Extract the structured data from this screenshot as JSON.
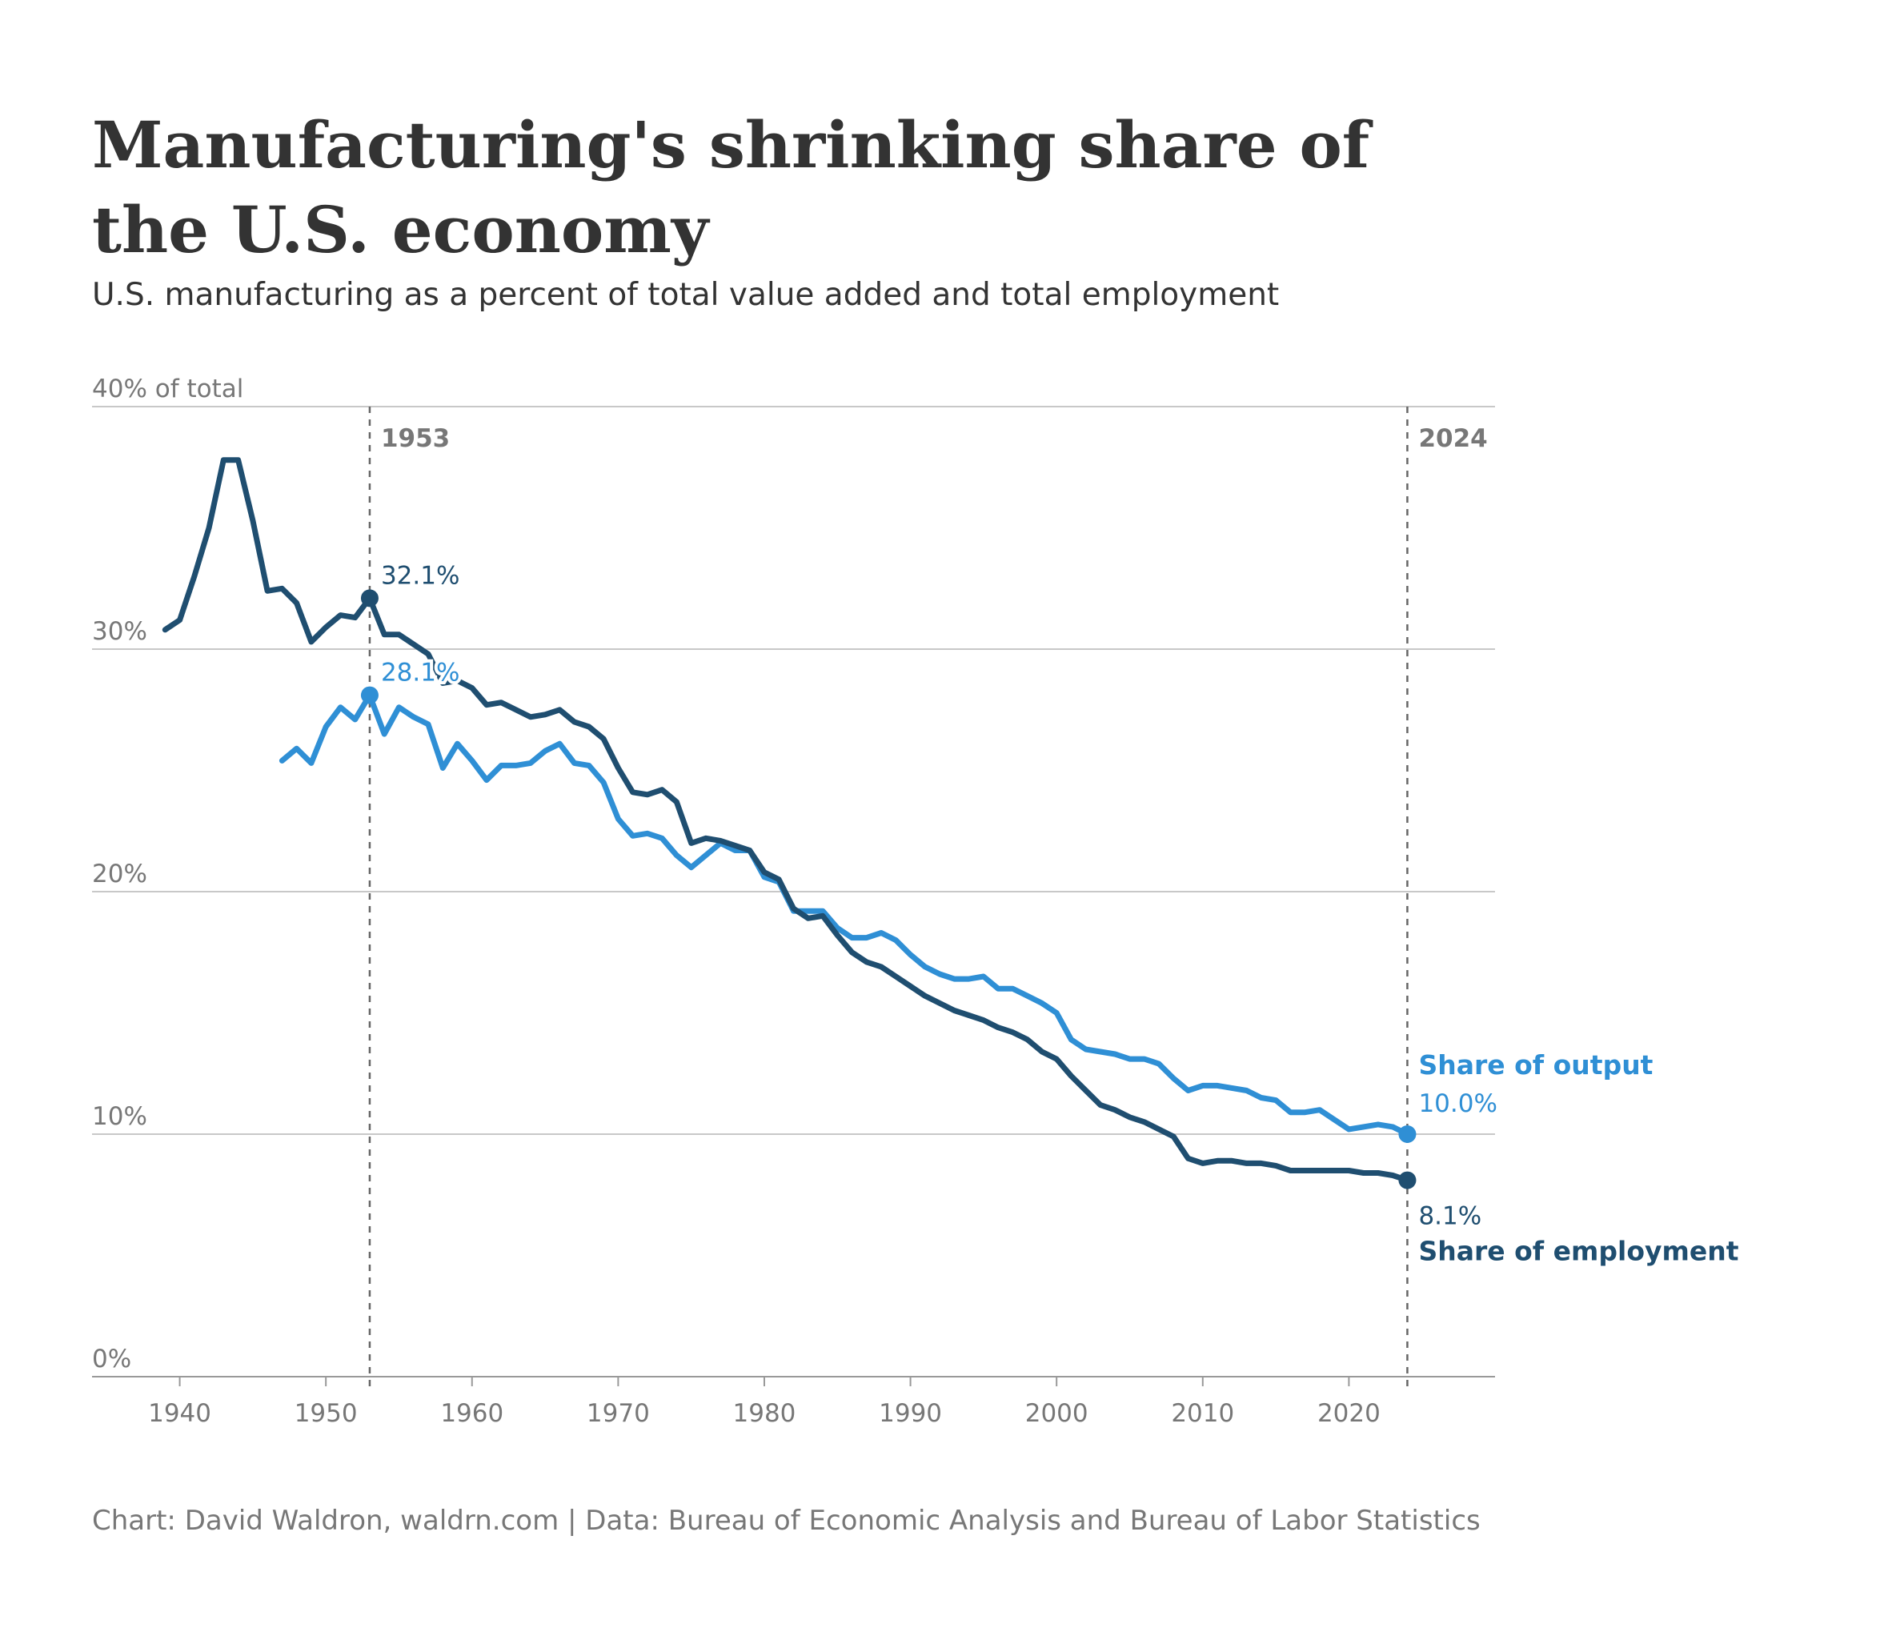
{
  "title": "Manufacturing's shrinking share of the U.S. economy",
  "subtitle": "U.S. manufacturing as a percent of total value added and total employment",
  "source": "Chart: David Waldron, waldrn.com | Data: Bureau of Economic Analysis and Bureau of Labor Statistics",
  "colors": {
    "employment": "#1f4e70",
    "output": "#2f8fd5",
    "grid": "#c8c8c8",
    "text": "#333333",
    "muted": "#777777"
  },
  "chart_data": {
    "type": "line",
    "title": "Manufacturing's shrinking share of the U.S. economy",
    "subtitle": "U.S. manufacturing as a percent of total value added and total employment",
    "ylabel": "40% of total",
    "xlim": [
      1934,
      2030
    ],
    "ylim": [
      0,
      40
    ],
    "x_ticks": [
      1940,
      1950,
      1960,
      1970,
      1980,
      1990,
      2000,
      2010,
      2020
    ],
    "x_tick_labels": [
      "1940",
      "1950",
      "1960",
      "1970",
      "1980",
      "1990",
      "2000",
      "2010",
      "2020"
    ],
    "y_ticks": [
      0,
      10,
      20,
      30,
      40
    ],
    "y_tick_labels": [
      "0%",
      "10%",
      "20%",
      "30%",
      "40% of total"
    ],
    "grid": true,
    "reference_lines": [
      {
        "x": 1953,
        "label": "1953"
      },
      {
        "x": 2024,
        "label": "2024"
      }
    ],
    "series": [
      {
        "name": "Share of employment",
        "x": [
          1939,
          1940,
          1941,
          1942,
          1943,
          1944,
          1945,
          1946,
          1947,
          1948,
          1949,
          1950,
          1951,
          1952,
          1953,
          1954,
          1955,
          1956,
          1957,
          1958,
          1959,
          1960,
          1961,
          1962,
          1963,
          1964,
          1965,
          1966,
          1967,
          1968,
          1969,
          1970,
          1971,
          1972,
          1973,
          1974,
          1975,
          1976,
          1977,
          1978,
          1979,
          1980,
          1981,
          1982,
          1983,
          1984,
          1985,
          1986,
          1987,
          1988,
          1989,
          1990,
          1991,
          1992,
          1993,
          1994,
          1995,
          1996,
          1997,
          1998,
          1999,
          2000,
          2001,
          2002,
          2003,
          2004,
          2005,
          2006,
          2007,
          2008,
          2009,
          2010,
          2011,
          2012,
          2013,
          2014,
          2015,
          2016,
          2017,
          2018,
          2019,
          2020,
          2021,
          2022,
          2023,
          2024
        ],
        "values": [
          30.8,
          31.2,
          33.0,
          35.0,
          37.8,
          37.8,
          35.3,
          32.4,
          32.5,
          31.9,
          30.3,
          30.9,
          31.4,
          31.3,
          32.1,
          30.6,
          30.6,
          30.2,
          29.8,
          28.6,
          28.7,
          28.4,
          27.7,
          27.8,
          27.5,
          27.2,
          27.3,
          27.5,
          27.0,
          26.8,
          26.3,
          25.1,
          24.1,
          24.0,
          24.2,
          23.7,
          22.0,
          22.2,
          22.1,
          21.9,
          21.7,
          20.8,
          20.5,
          19.3,
          18.9,
          19.0,
          18.2,
          17.5,
          17.1,
          16.9,
          16.5,
          16.1,
          15.7,
          15.4,
          15.1,
          14.9,
          14.7,
          14.4,
          14.2,
          13.9,
          13.4,
          13.1,
          12.4,
          11.8,
          11.2,
          11.0,
          10.7,
          10.5,
          10.2,
          9.9,
          9.0,
          8.8,
          8.9,
          8.9,
          8.8,
          8.8,
          8.7,
          8.5,
          8.5,
          8.5,
          8.5,
          8.5,
          8.4,
          8.4,
          8.3,
          8.1
        ],
        "highlight": [
          {
            "x": 1953,
            "label": "32.1%"
          },
          {
            "x": 2024,
            "label": "8.1%"
          }
        ]
      },
      {
        "name": "Share of output",
        "x": [
          1947,
          1948,
          1949,
          1950,
          1951,
          1952,
          1953,
          1954,
          1955,
          1956,
          1957,
          1958,
          1959,
          1960,
          1961,
          1962,
          1963,
          1964,
          1965,
          1966,
          1967,
          1968,
          1969,
          1970,
          1971,
          1972,
          1973,
          1974,
          1975,
          1976,
          1977,
          1978,
          1979,
          1980,
          1981,
          1982,
          1983,
          1984,
          1985,
          1986,
          1987,
          1988,
          1989,
          1990,
          1991,
          1992,
          1993,
          1994,
          1995,
          1996,
          1997,
          1998,
          1999,
          2000,
          2001,
          2002,
          2003,
          2004,
          2005,
          2006,
          2007,
          2008,
          2009,
          2010,
          2011,
          2012,
          2013,
          2014,
          2015,
          2016,
          2017,
          2018,
          2019,
          2020,
          2021,
          2022,
          2023,
          2024
        ],
        "values": [
          25.4,
          25.9,
          25.3,
          26.8,
          27.6,
          27.1,
          28.1,
          26.5,
          27.6,
          27.2,
          26.9,
          25.1,
          26.1,
          25.4,
          24.6,
          25.2,
          25.2,
          25.3,
          25.8,
          26.1,
          25.3,
          25.2,
          24.5,
          23.0,
          22.3,
          22.4,
          22.2,
          21.5,
          21.0,
          21.5,
          22.0,
          21.7,
          21.7,
          20.6,
          20.4,
          19.2,
          19.2,
          19.2,
          18.5,
          18.1,
          18.1,
          18.3,
          18.0,
          17.4,
          16.9,
          16.6,
          16.4,
          16.4,
          16.5,
          16.0,
          16.0,
          15.7,
          15.4,
          15.0,
          13.9,
          13.5,
          13.4,
          13.3,
          13.1,
          13.1,
          12.9,
          12.3,
          11.8,
          12.0,
          12.0,
          11.9,
          11.8,
          11.5,
          11.4,
          10.9,
          10.9,
          11.0,
          10.6,
          10.2,
          10.3,
          10.4,
          10.3,
          10.0
        ],
        "highlight": [
          {
            "x": 1953,
            "label": "28.1%"
          },
          {
            "x": 2024,
            "label": "10.0%"
          }
        ]
      }
    ]
  }
}
